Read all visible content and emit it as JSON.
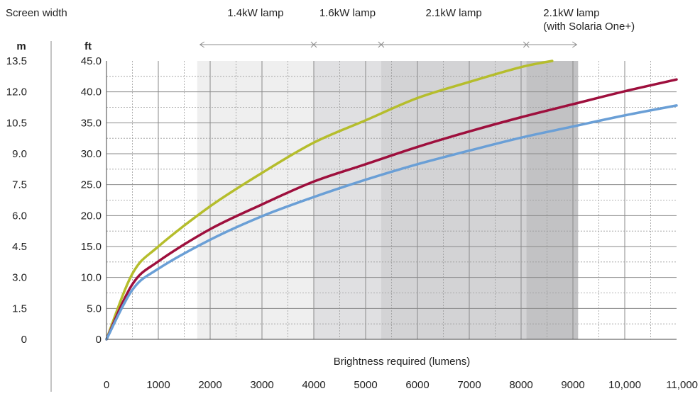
{
  "chart_data": {
    "type": "line",
    "title": "Screen width",
    "xlabel": "Brightness required (lumens)",
    "ylabel_units": [
      "m",
      "ft"
    ],
    "xlim": [
      0,
      11000
    ],
    "ylim_ft": [
      0,
      45
    ],
    "xticks": [
      "0",
      "1000",
      "2000",
      "3000",
      "4000",
      "5000",
      "6000",
      "7000",
      "8000",
      "9000",
      "10,000",
      "11,000"
    ],
    "yticks_ft": [
      "0",
      "5.0",
      "10.0",
      "15.0",
      "20.0",
      "25.0",
      "30.0",
      "35.0",
      "40.0",
      "45.0"
    ],
    "yticks_m": [
      "0",
      "1.5",
      "3.0",
      "4.5",
      "6.0",
      "7.5",
      "9.0",
      "10.5",
      "12.0",
      "13.5"
    ],
    "grid": true,
    "lamp_bands": [
      {
        "label": "1.4kW lamp",
        "x_start": 1750,
        "x_end": 4000,
        "color": "#efefef"
      },
      {
        "label": "1.6kW lamp",
        "x_start": 4000,
        "x_end": 5300,
        "color": "#e0e0e2"
      },
      {
        "label": "2.1kW lamp",
        "x_start": 5300,
        "x_end": 8100,
        "color": "#d3d3d5"
      },
      {
        "label": "2.1kW lamp",
        "sublabel": "(with Solaria One+)",
        "x_start": 8100,
        "x_end": 9100,
        "color": "#c2c2c4"
      }
    ],
    "series": [
      {
        "color": "#b5bd2c",
        "x": [
          0,
          500,
          1000,
          2000,
          3000,
          4000,
          5000,
          6000,
          7000,
          8000,
          8600
        ],
        "y": [
          0,
          10.6,
          15.0,
          21.5,
          26.9,
          31.8,
          35.4,
          39.0,
          41.6,
          44.0,
          45.0
        ]
      },
      {
        "color": "#9e0f3d",
        "x": [
          0,
          500,
          1000,
          2000,
          3000,
          4000,
          5000,
          6000,
          7000,
          8000,
          9000,
          10000,
          11000
        ],
        "y": [
          0,
          8.9,
          12.6,
          17.8,
          21.8,
          25.5,
          28.3,
          31.1,
          33.6,
          35.9,
          38.0,
          40.1,
          42.0
        ]
      },
      {
        "color": "#6a9fd6",
        "x": [
          0,
          500,
          1000,
          2000,
          3000,
          4000,
          5000,
          6000,
          7000,
          8000,
          9000,
          10000,
          11000
        ],
        "y": [
          0,
          8.0,
          11.4,
          16.1,
          19.9,
          23.0,
          25.8,
          28.3,
          30.5,
          32.6,
          34.4,
          36.2,
          37.8
        ]
      }
    ]
  }
}
